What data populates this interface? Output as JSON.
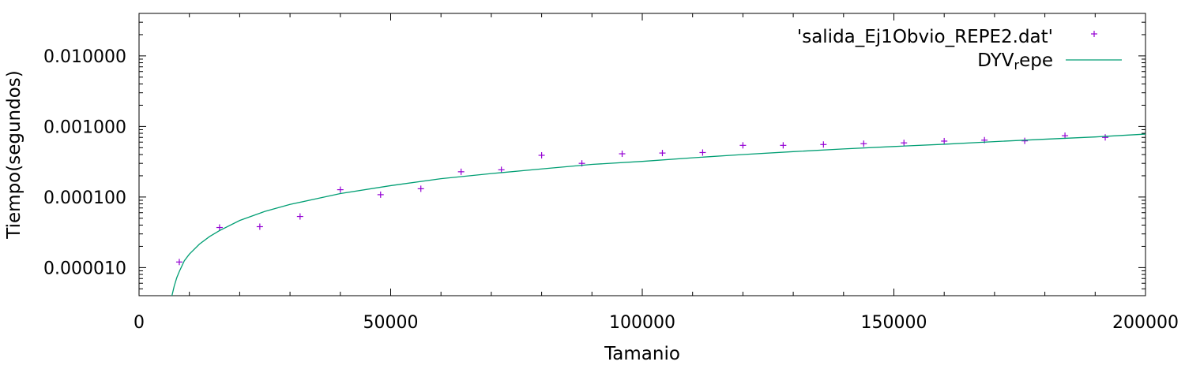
{
  "chart_data": {
    "type": "scatter",
    "xlabel": "Tamanio",
    "ylabel": "Tiempo(segundos)",
    "xlim": [
      0,
      200000
    ],
    "ylim": [
      4e-06,
      0.04
    ],
    "y_scale": "log",
    "x_ticks": [
      0,
      50000,
      100000,
      150000,
      200000
    ],
    "x_tick_labels": [
      "0",
      "50000",
      "100000",
      "150000",
      "200000"
    ],
    "y_ticks": [
      1e-05,
      0.0001,
      0.001,
      0.01
    ],
    "y_tick_labels": [
      "0.000010",
      "0.000100",
      "0.001000",
      "0.010000"
    ],
    "grid": false,
    "legend_position": "top-right",
    "series": [
      {
        "name": "'salida_Ej1Obvio_REPE2.dat'",
        "kind": "points",
        "marker": "plus",
        "color": "#9400d3",
        "x": [
          8000,
          16000,
          24000,
          32000,
          40000,
          48000,
          56000,
          64000,
          72000,
          80000,
          88000,
          96000,
          104000,
          112000,
          120000,
          128000,
          136000,
          144000,
          152000,
          160000,
          168000,
          176000,
          184000,
          192000
        ],
        "y": [
          1.2e-05,
          3.7e-05,
          3.8e-05,
          5.3e-05,
          0.000127,
          0.000108,
          0.000131,
          0.000228,
          0.000243,
          0.00039,
          0.0003,
          0.00041,
          0.00042,
          0.000427,
          0.00054,
          0.00054,
          0.000555,
          0.00057,
          0.000585,
          0.00062,
          0.00064,
          0.000625,
          0.00074,
          0.0007
        ]
      },
      {
        "name": "DYV",
        "name_subscript": "r",
        "name_suffix": "epe",
        "kind": "line",
        "color": "#009e73",
        "x": [
          6500,
          7000,
          7500,
          8000,
          9000,
          10000,
          12000,
          14000,
          16000,
          20000,
          25000,
          30000,
          40000,
          50000,
          60000,
          70000,
          80000,
          90000,
          100000,
          110000,
          120000,
          130000,
          140000,
          150000,
          160000,
          170000,
          180000,
          190000,
          200000
        ],
        "y": [
          3.9e-06,
          5.5e-06,
          7.2e-06,
          8.8e-06,
          1.25e-05,
          1.55e-05,
          2.15e-05,
          2.75e-05,
          3.35e-05,
          4.65e-05,
          6.25e-05,
          7.85e-05,
          0.000112,
          0.000145,
          0.000182,
          0.000215,
          0.00025,
          0.00029,
          0.00032,
          0.00036,
          0.0004,
          0.00044,
          0.00048,
          0.00052,
          0.00056,
          0.00061,
          0.00066,
          0.00071,
          0.00078
        ]
      }
    ]
  }
}
